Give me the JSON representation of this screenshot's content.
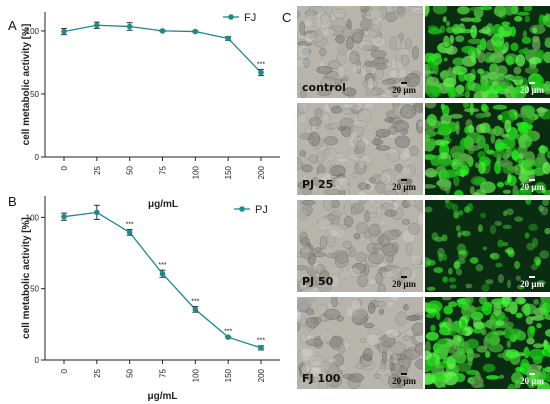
{
  "panel_letters": {
    "a": "A",
    "b": "B",
    "c": "C"
  },
  "style": {
    "series_color": "#1e8a8c",
    "axis_color": "#222222"
  },
  "chart_data": [
    {
      "type": "line",
      "panel": "A",
      "categories": [
        "0",
        "25",
        "50",
        "75",
        "100",
        "150",
        "200"
      ],
      "series": [
        {
          "name": "FJ",
          "values": [
            99.5,
            104.5,
            103.5,
            100,
            99.5,
            94,
            67
          ],
          "errors": [
            2.5,
            2.5,
            3,
            0.5,
            0.5,
            1.5,
            2.5
          ]
        }
      ],
      "significance": [
        "",
        "",
        "",
        "",
        "",
        "",
        "***"
      ],
      "ylabel": "cell metabolic activity [%]",
      "xlabel": "",
      "yticks": [
        0,
        50,
        100
      ],
      "ylim": [
        0,
        115
      ],
      "grid": false,
      "legend": "top-right"
    },
    {
      "type": "line",
      "panel": "B",
      "categories": [
        "0",
        "25",
        "50",
        "75",
        "100",
        "150",
        "200"
      ],
      "series": [
        {
          "name": "PJ",
          "values": [
            100.5,
            103.5,
            89.5,
            60.5,
            35.5,
            16,
            8.5
          ],
          "errors": [
            2.5,
            5,
            2,
            2.5,
            2,
            0.5,
            1.5
          ]
        }
      ],
      "significance": [
        "",
        "",
        "***",
        "***",
        "***",
        "***",
        "***"
      ],
      "ylabel": "cell metabolic activity [%]",
      "xlabel": "μg/mL",
      "between_label": "μg/mL",
      "yticks": [
        0,
        50,
        100
      ],
      "ylim": [
        0,
        115
      ],
      "grid": false,
      "legend": "top-right"
    }
  ],
  "micrographs": {
    "scale_bar_text": "20 μm",
    "rows": [
      {
        "label": "control"
      },
      {
        "label": "PJ 25"
      },
      {
        "label": "PJ 50"
      },
      {
        "label": "FJ 100"
      }
    ]
  }
}
